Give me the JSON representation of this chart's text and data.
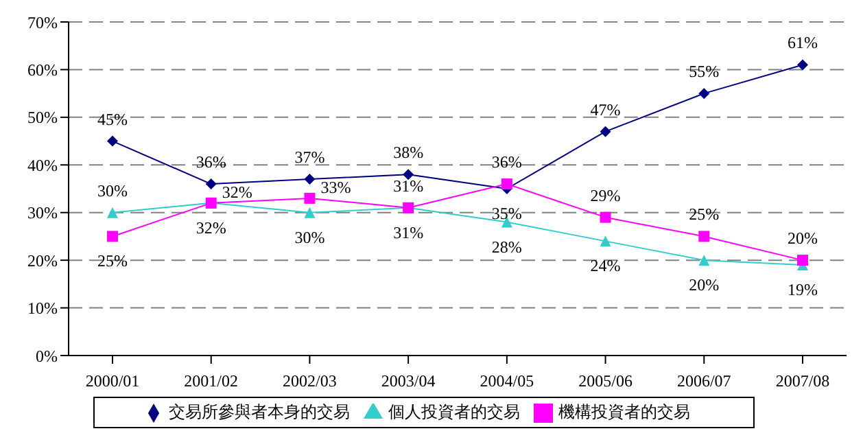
{
  "chart_data": {
    "type": "line",
    "categories": [
      "2000/01",
      "2001/02",
      "2002/03",
      "2003/04",
      "2004/05",
      "2005/06",
      "2006/07",
      "2007/08"
    ],
    "series": [
      {
        "name": "交易所參與者本身的交易",
        "color": "#000080",
        "marker": "diamond",
        "values": [
          45,
          36,
          37,
          38,
          35,
          47,
          55,
          61
        ],
        "value_labels": [
          "45%",
          "36%",
          "37%",
          "38%",
          "35%",
          "47%",
          "55%",
          "61%"
        ]
      },
      {
        "name": "個人投資者的交易",
        "color": "#33cccc",
        "marker": "triangle",
        "values": [
          30,
          32,
          30,
          31,
          28,
          24,
          20,
          19
        ],
        "value_labels": [
          "30%",
          "32%",
          "30%",
          "31%",
          "28%",
          "24%",
          "20%",
          "19%"
        ]
      },
      {
        "name": "機構投資者的交易",
        "color": "#ff00ff",
        "marker": "square",
        "values": [
          25,
          32,
          33,
          31,
          36,
          29,
          25,
          20
        ],
        "value_labels": [
          "25%",
          "32%",
          "33%",
          "31%",
          "36%",
          "29%",
          "25%",
          "20%"
        ]
      }
    ],
    "ylim": [
      0,
      70
    ],
    "yticks": [
      {
        "value": 0,
        "label": "0%"
      },
      {
        "value": 10,
        "label": "10%"
      },
      {
        "value": 20,
        "label": "20%"
      },
      {
        "value": 30,
        "label": "30%"
      },
      {
        "value": 40,
        "label": "40%"
      },
      {
        "value": 50,
        "label": "50%"
      },
      {
        "value": 60,
        "label": "60%"
      },
      {
        "value": 70,
        "label": "70%"
      }
    ],
    "grid": "y",
    "legend": "bottom",
    "line_style": "solid"
  }
}
